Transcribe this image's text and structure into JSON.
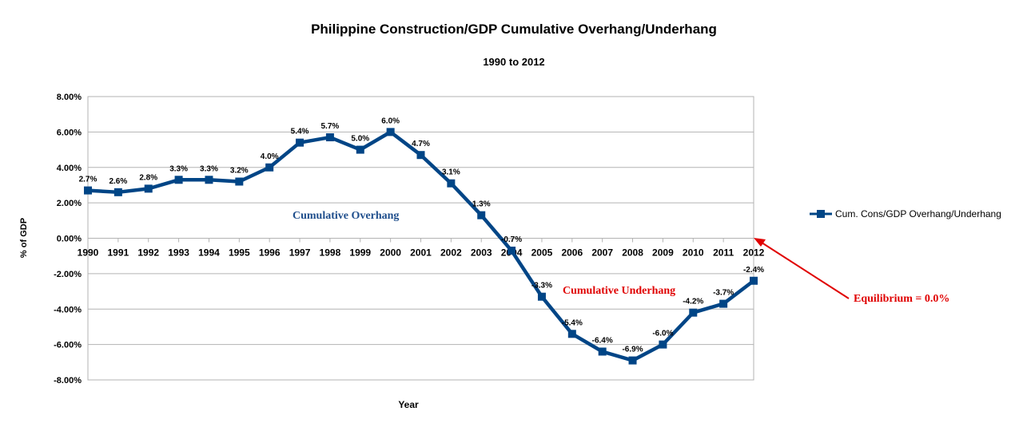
{
  "chart_data": {
    "type": "line",
    "title": "Philippine Construction/GDP Cumulative Overhang/Underhang",
    "subtitle": "1990 to 2012",
    "xlabel": "Year",
    "ylabel": "% of GDP",
    "ylim": [
      -8,
      8
    ],
    "yticks": [
      "8.00%",
      "6.00%",
      "4.00%",
      "2.00%",
      "0.00%",
      "-2.00%",
      "-4.00%",
      "-6.00%",
      "-8.00%"
    ],
    "ytick_values": [
      8,
      6,
      4,
      2,
      0,
      -2,
      -4,
      -6,
      -8
    ],
    "grid": true,
    "legend_position": "right",
    "categories": [
      "1990",
      "1991",
      "1992",
      "1993",
      "1994",
      "1995",
      "1996",
      "1997",
      "1998",
      "1999",
      "2000",
      "2001",
      "2002",
      "2003",
      "2004",
      "2005",
      "2006",
      "2007",
      "2008",
      "2009",
      "2010",
      "2011",
      "2012"
    ],
    "series": [
      {
        "name": "Cum. Cons/GDP Overhang/Underhang",
        "color": "#004586",
        "values": [
          2.7,
          2.6,
          2.8,
          3.3,
          3.3,
          3.2,
          4.0,
          5.4,
          5.7,
          5.0,
          6.0,
          4.7,
          3.1,
          1.3,
          -0.7,
          -3.3,
          -5.4,
          -6.4,
          -6.9,
          -6.0,
          -4.2,
          -3.7,
          -2.4
        ],
        "labels": [
          "2.7%",
          "2.6%",
          "2.8%",
          "3.3%",
          "3.3%",
          "3.2%",
          "4.0%",
          "5.4%",
          "5.7%",
          "5.0%",
          "6.0%",
          "4.7%",
          "3.1%",
          "1.3%",
          "-0.7%",
          "-3.3%",
          "-5.4%",
          "-6.4%",
          "-6.9%",
          "-6.0%",
          "-4.2%",
          "-3.7%",
          "-2.4%"
        ]
      }
    ],
    "annotations": [
      {
        "text": "Cumulative Overhang",
        "color": "#1f4e8c"
      },
      {
        "text": "Cumulative Underhang",
        "color": "#e00000"
      },
      {
        "text": "Equilibrium = 0.0%",
        "color": "#e00000"
      }
    ]
  }
}
